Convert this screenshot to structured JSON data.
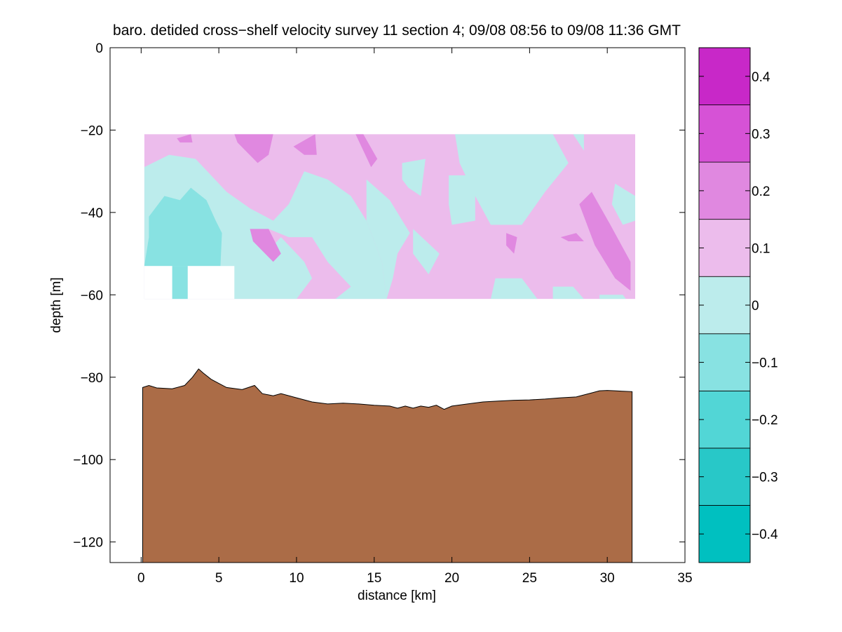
{
  "chart_data": {
    "type": "contour",
    "title": "baro. detided cross−shelf velocity survey 11 section 4; 09/08 08:56 to 09/08 11:36 GMT",
    "xlabel": "distance [km]",
    "ylabel": "depth [m]",
    "xlim": [
      -2,
      35
    ],
    "ylim": [
      -125,
      0
    ],
    "x_ticks": [
      0,
      5,
      10,
      15,
      20,
      25,
      30,
      35
    ],
    "x_tick_labels": [
      "0",
      "5",
      "10",
      "15",
      "20",
      "25",
      "30",
      "35"
    ],
    "y_ticks": [
      0,
      -20,
      -40,
      -60,
      -80,
      -100,
      -120
    ],
    "y_tick_labels": [
      "0",
      "−20",
      "−40",
      "−60",
      "−80",
      "−100",
      "−120"
    ],
    "colorbar": {
      "limits": [
        -0.45,
        0.45
      ],
      "levels": [
        -0.45,
        -0.35,
        -0.25,
        -0.15,
        -0.05,
        0.05,
        0.15,
        0.25,
        0.35,
        0.45
      ],
      "colors": [
        "#00c0c0",
        "#28c8c8",
        "#52d6d6",
        "#88e2e2",
        "#bcecec",
        "#ecbcec",
        "#e088e0",
        "#d652d6",
        "#c828c8",
        "#c000c0"
      ],
      "ticks": [
        0.4,
        0.3,
        0.2,
        0.1,
        0,
        -0.1,
        -0.2,
        -0.3,
        -0.4
      ],
      "tick_labels": [
        "0.4",
        "0.3",
        "0.2",
        "0.1",
        "0",
        "−0.1",
        "−0.2",
        "−0.3",
        "−0.4"
      ]
    },
    "data_region": {
      "x_range": [
        0.2,
        31.8
      ],
      "depth_range": [
        -21,
        -61
      ]
    },
    "regions": [
      {
        "level": 0.1,
        "points": [
          [
            0.2,
            -21
          ],
          [
            31.8,
            -21
          ],
          [
            31.8,
            -61
          ],
          [
            0.2,
            -61
          ]
        ]
      },
      {
        "level": -0.05,
        "points": [
          [
            0.2,
            -29
          ],
          [
            1.8,
            -26
          ],
          [
            3.5,
            -27
          ],
          [
            4.5,
            -31
          ],
          [
            5.5,
            -35
          ],
          [
            7,
            -39
          ],
          [
            8.2,
            -44
          ],
          [
            7.2,
            -47
          ],
          [
            8,
            -50
          ],
          [
            9,
            -46
          ],
          [
            10.5,
            -52
          ],
          [
            11,
            -56
          ],
          [
            10,
            -61
          ],
          [
            0.2,
            -61
          ]
        ]
      },
      {
        "level": -0.05,
        "points": [
          [
            7,
            -39
          ],
          [
            8.5,
            -42
          ],
          [
            9.5,
            -38
          ],
          [
            10.5,
            -30
          ],
          [
            12,
            -32
          ],
          [
            13.5,
            -36
          ],
          [
            14.5,
            -42
          ],
          [
            15.5,
            -52
          ],
          [
            15.8,
            -61
          ],
          [
            12.5,
            -61
          ],
          [
            13.5,
            -58
          ],
          [
            12,
            -52
          ],
          [
            11,
            -46
          ],
          [
            9.5,
            -46
          ],
          [
            8.2,
            -44
          ]
        ]
      },
      {
        "level": -0.05,
        "points": [
          [
            14.5,
            -32
          ],
          [
            16,
            -37
          ],
          [
            17.3,
            -45
          ],
          [
            16.5,
            -50
          ],
          [
            16.2,
            -56
          ],
          [
            15.8,
            -61
          ],
          [
            15.5,
            -52
          ],
          [
            14.5,
            -42
          ]
        ]
      },
      {
        "level": -0.05,
        "points": [
          [
            20.2,
            -21
          ],
          [
            26.5,
            -21
          ],
          [
            27.5,
            -28
          ],
          [
            26,
            -35
          ],
          [
            24.5,
            -43
          ],
          [
            22.5,
            -43
          ],
          [
            21.5,
            -36
          ],
          [
            20.5,
            -28
          ]
        ]
      },
      {
        "level": -0.05,
        "points": [
          [
            16.8,
            -28
          ],
          [
            18.3,
            -27
          ],
          [
            18,
            -36
          ],
          [
            17.2,
            -34
          ],
          [
            16.8,
            -32
          ]
        ]
      },
      {
        "level": -0.05,
        "points": [
          [
            19.8,
            -31
          ],
          [
            21.2,
            -31
          ],
          [
            21.5,
            -36
          ],
          [
            21.5,
            -42
          ],
          [
            20,
            -43
          ],
          [
            19.8,
            -38
          ]
        ]
      },
      {
        "level": -0.05,
        "points": [
          [
            27.8,
            -21
          ],
          [
            28.5,
            -21
          ],
          [
            28.5,
            -25
          ]
        ]
      },
      {
        "level": -0.05,
        "points": [
          [
            30.5,
            -33
          ],
          [
            31.8,
            -36
          ],
          [
            31.8,
            -42
          ],
          [
            31,
            -43
          ],
          [
            30.3,
            -38
          ]
        ]
      },
      {
        "level": -0.05,
        "points": [
          [
            17.5,
            -44
          ],
          [
            19.2,
            -50
          ],
          [
            18.5,
            -55
          ],
          [
            17.5,
            -50
          ]
        ]
      },
      {
        "level": -0.05,
        "points": [
          [
            22.8,
            -56
          ],
          [
            24.5,
            -56
          ],
          [
            25.5,
            -61
          ],
          [
            22.5,
            -61
          ]
        ]
      },
      {
        "level": -0.05,
        "points": [
          [
            26.5,
            -58
          ],
          [
            27.8,
            -58
          ],
          [
            28.5,
            -61
          ],
          [
            26.5,
            -61
          ]
        ]
      },
      {
        "level": -0.05,
        "points": [
          [
            29.5,
            -60
          ],
          [
            31,
            -60
          ],
          [
            31.2,
            -61
          ],
          [
            29.5,
            -61
          ]
        ]
      },
      {
        "level": -0.15,
        "points": [
          [
            0.2,
            -53
          ],
          [
            0.5,
            -46
          ],
          [
            0.5,
            -41
          ],
          [
            1.5,
            -36
          ],
          [
            2.5,
            -37
          ],
          [
            3.2,
            -34
          ],
          [
            4.2,
            -37
          ],
          [
            4.8,
            -42
          ],
          [
            5.2,
            -45
          ],
          [
            5.1,
            -53
          ],
          [
            0.2,
            -53
          ]
        ]
      },
      {
        "level": -0.15,
        "points": [
          [
            2,
            -53
          ],
          [
            3,
            -53
          ],
          [
            3,
            -61
          ],
          [
            2,
            -61
          ]
        ]
      },
      {
        "level": 0.15,
        "points": [
          [
            6,
            -21
          ],
          [
            8.5,
            -21
          ],
          [
            8.2,
            -26
          ],
          [
            7.5,
            -28
          ],
          [
            6.2,
            -23
          ]
        ]
      },
      {
        "level": 0.15,
        "points": [
          [
            9.8,
            -24
          ],
          [
            11.2,
            -21
          ],
          [
            11.3,
            -26
          ],
          [
            10.5,
            -26
          ]
        ]
      },
      {
        "level": 0.15,
        "points": [
          [
            13.8,
            -21
          ],
          [
            14.3,
            -21
          ],
          [
            15.2,
            -27
          ],
          [
            14.8,
            -29
          ]
        ]
      },
      {
        "level": 0.15,
        "points": [
          [
            7,
            -44
          ],
          [
            8.2,
            -44
          ],
          [
            9,
            -50
          ],
          [
            8.5,
            -52
          ],
          [
            7.2,
            -47
          ]
        ]
      },
      {
        "level": 0.15,
        "points": [
          [
            28.2,
            -38
          ],
          [
            29,
            -35
          ],
          [
            30.2,
            -43
          ],
          [
            31.5,
            -52
          ],
          [
            31.5,
            -59
          ],
          [
            30.5,
            -56
          ],
          [
            29.2,
            -48
          ]
        ]
      },
      {
        "level": 0.15,
        "points": [
          [
            23.5,
            -45
          ],
          [
            24.2,
            -46
          ],
          [
            24,
            -50
          ],
          [
            23.5,
            -48
          ]
        ]
      },
      {
        "level": 0.15,
        "points": [
          [
            27,
            -46
          ],
          [
            28,
            -45
          ],
          [
            28.5,
            -47
          ],
          [
            27.5,
            -47
          ]
        ]
      },
      {
        "level": 0.15,
        "points": [
          [
            2.3,
            -22
          ],
          [
            3.2,
            -21
          ],
          [
            3.3,
            -23
          ],
          [
            2.5,
            -23
          ]
        ]
      }
    ],
    "blank_regions": [
      {
        "points": [
          [
            0.2,
            -53
          ],
          [
            2,
            -53
          ],
          [
            2,
            -61
          ],
          [
            0.2,
            -61
          ]
        ]
      },
      {
        "points": [
          [
            3,
            -53
          ],
          [
            6,
            -53
          ],
          [
            6,
            -61
          ],
          [
            3,
            -61
          ]
        ]
      }
    ],
    "bathymetry": {
      "color": "#ab6c47",
      "points": [
        [
          0.1,
          -82.5
        ],
        [
          0.5,
          -82
        ],
        [
          1,
          -82.6
        ],
        [
          2,
          -82.8
        ],
        [
          2.8,
          -82
        ],
        [
          3.3,
          -80
        ],
        [
          3.7,
          -78
        ],
        [
          4,
          -79
        ],
        [
          4.5,
          -80.5
        ],
        [
          5,
          -81.5
        ],
        [
          5.5,
          -82.5
        ],
        [
          6.5,
          -83
        ],
        [
          7.3,
          -82
        ],
        [
          7.8,
          -84
        ],
        [
          8.5,
          -84.5
        ],
        [
          9,
          -84
        ],
        [
          10,
          -85
        ],
        [
          11,
          -86
        ],
        [
          12,
          -86.5
        ],
        [
          13,
          -86.3
        ],
        [
          14,
          -86.5
        ],
        [
          15,
          -86.8
        ],
        [
          16,
          -87
        ],
        [
          16.5,
          -87.5
        ],
        [
          17,
          -87
        ],
        [
          17.5,
          -87.5
        ],
        [
          18,
          -87
        ],
        [
          18.5,
          -87.3
        ],
        [
          19,
          -86.8
        ],
        [
          19.5,
          -87.8
        ],
        [
          20,
          -87
        ],
        [
          21,
          -86.5
        ],
        [
          22,
          -86
        ],
        [
          23,
          -85.8
        ],
        [
          24,
          -85.6
        ],
        [
          25,
          -85.5
        ],
        [
          26,
          -85.3
        ],
        [
          27,
          -85
        ],
        [
          28,
          -84.8
        ],
        [
          28.5,
          -84.3
        ],
        [
          29,
          -83.8
        ],
        [
          29.5,
          -83.3
        ],
        [
          30,
          -83.2
        ],
        [
          30.5,
          -83.3
        ],
        [
          31,
          -83.4
        ],
        [
          31.6,
          -83.5
        ]
      ],
      "x_range": [
        0.1,
        31.6
      ],
      "bottom": -125
    }
  }
}
